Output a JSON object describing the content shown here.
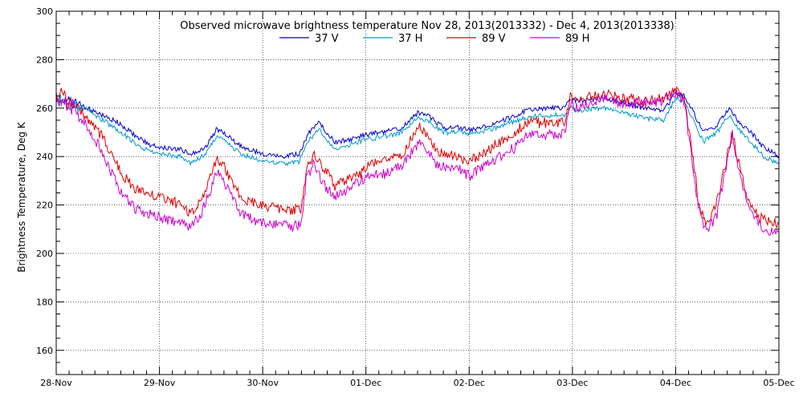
{
  "chart_data": {
    "type": "line",
    "title": "Observed microwave brightness temperature Nov 28, 2013(2013332) - Dec  4, 2013(2013338)",
    "xlabel": "",
    "ylabel": "Brightness Temperature, Deg K",
    "xlim": [
      "2013-11-28",
      "2013-12-05"
    ],
    "ylim": [
      150,
      300
    ],
    "x_ticks": [
      "28-Nov",
      "29-Nov",
      "30-Nov",
      "01-Dec",
      "02-Dec",
      "03-Dec",
      "04-Dec",
      "05-Dec"
    ],
    "y_ticks": [
      160,
      180,
      200,
      220,
      240,
      260,
      280,
      300
    ],
    "grid": true,
    "legend_position": "top-center",
    "x_unit": "days from 2013-11-28 00:00",
    "series": [
      {
        "name": "37 V",
        "color": "#0000cc",
        "points": [
          [
            0,
            265
          ],
          [
            0.15,
            262
          ],
          [
            0.3,
            260
          ],
          [
            0.45,
            257
          ],
          [
            0.6,
            254
          ],
          [
            0.75,
            249
          ],
          [
            0.9,
            245
          ],
          [
            1.0,
            244
          ],
          [
            1.2,
            243
          ],
          [
            1.3,
            241
          ],
          [
            1.45,
            244
          ],
          [
            1.55,
            251
          ],
          [
            1.6,
            251
          ],
          [
            1.7,
            247
          ],
          [
            1.8,
            244
          ],
          [
            2.0,
            241
          ],
          [
            2.2,
            240
          ],
          [
            2.35,
            241
          ],
          [
            2.45,
            250
          ],
          [
            2.55,
            254
          ],
          [
            2.62,
            250
          ],
          [
            2.7,
            246
          ],
          [
            2.85,
            247
          ],
          [
            3.0,
            249
          ],
          [
            3.15,
            250
          ],
          [
            3.35,
            252
          ],
          [
            3.5,
            258
          ],
          [
            3.6,
            257
          ],
          [
            3.75,
            252
          ],
          [
            3.9,
            252
          ],
          [
            4.0,
            251
          ],
          [
            4.2,
            253
          ],
          [
            4.4,
            256
          ],
          [
            4.55,
            259
          ],
          [
            4.7,
            260
          ],
          [
            4.92,
            260
          ],
          [
            4.98,
            264
          ],
          [
            5.05,
            263
          ],
          [
            5.3,
            264
          ],
          [
            5.5,
            262
          ],
          [
            5.7,
            260
          ],
          [
            5.88,
            259
          ],
          [
            6.0,
            266
          ],
          [
            6.08,
            265
          ],
          [
            6.15,
            260
          ],
          [
            6.27,
            250
          ],
          [
            6.4,
            253
          ],
          [
            6.52,
            260
          ],
          [
            6.6,
            255
          ],
          [
            6.75,
            249
          ],
          [
            6.85,
            244
          ],
          [
            7.0,
            240
          ]
        ]
      },
      {
        "name": "37 H",
        "color": "#0099cc",
        "points": [
          [
            0,
            264
          ],
          [
            0.15,
            261
          ],
          [
            0.3,
            259
          ],
          [
            0.45,
            255
          ],
          [
            0.6,
            251
          ],
          [
            0.75,
            246
          ],
          [
            0.9,
            242
          ],
          [
            1.0,
            241
          ],
          [
            1.2,
            240
          ],
          [
            1.3,
            237
          ],
          [
            1.45,
            241
          ],
          [
            1.55,
            248
          ],
          [
            1.6,
            248
          ],
          [
            1.7,
            244
          ],
          [
            1.8,
            241
          ],
          [
            2.0,
            238
          ],
          [
            2.2,
            237
          ],
          [
            2.35,
            238
          ],
          [
            2.45,
            247
          ],
          [
            2.55,
            251
          ],
          [
            2.62,
            247
          ],
          [
            2.7,
            243
          ],
          [
            2.85,
            245
          ],
          [
            3.0,
            247
          ],
          [
            3.15,
            248
          ],
          [
            3.35,
            250
          ],
          [
            3.5,
            256
          ],
          [
            3.6,
            255
          ],
          [
            3.75,
            250
          ],
          [
            3.9,
            250
          ],
          [
            4.0,
            249
          ],
          [
            4.2,
            251
          ],
          [
            4.4,
            254
          ],
          [
            4.55,
            256
          ],
          [
            4.7,
            257
          ],
          [
            4.92,
            257
          ],
          [
            4.98,
            260
          ],
          [
            5.05,
            259
          ],
          [
            5.3,
            260
          ],
          [
            5.5,
            258
          ],
          [
            5.7,
            256
          ],
          [
            5.88,
            255
          ],
          [
            6.0,
            264
          ],
          [
            6.08,
            263
          ],
          [
            6.15,
            257
          ],
          [
            6.27,
            246
          ],
          [
            6.4,
            250
          ],
          [
            6.52,
            257
          ],
          [
            6.6,
            252
          ],
          [
            6.75,
            245
          ],
          [
            6.85,
            240
          ],
          [
            7.0,
            237
          ]
        ]
      },
      {
        "name": "89 V",
        "color": "#dd0000",
        "points": [
          [
            0,
            266
          ],
          [
            0.15,
            262
          ],
          [
            0.3,
            256
          ],
          [
            0.45,
            248
          ],
          [
            0.55,
            240
          ],
          [
            0.65,
            232
          ],
          [
            0.75,
            227
          ],
          [
            0.85,
            225
          ],
          [
            1.0,
            223
          ],
          [
            1.15,
            221
          ],
          [
            1.3,
            217
          ],
          [
            1.4,
            222
          ],
          [
            1.5,
            232
          ],
          [
            1.55,
            238
          ],
          [
            1.6,
            238
          ],
          [
            1.7,
            229
          ],
          [
            1.8,
            223
          ],
          [
            1.9,
            221
          ],
          [
            2.1,
            219
          ],
          [
            2.3,
            218
          ],
          [
            2.37,
            218
          ],
          [
            2.42,
            234
          ],
          [
            2.5,
            242
          ],
          [
            2.55,
            237
          ],
          [
            2.6,
            235
          ],
          [
            2.7,
            228
          ],
          [
            2.8,
            230
          ],
          [
            2.95,
            233
          ],
          [
            3.05,
            237
          ],
          [
            3.2,
            238
          ],
          [
            3.35,
            241
          ],
          [
            3.45,
            248
          ],
          [
            3.52,
            252
          ],
          [
            3.6,
            248
          ],
          [
            3.7,
            242
          ],
          [
            3.85,
            241
          ],
          [
            4.0,
            238
          ],
          [
            4.15,
            242
          ],
          [
            4.3,
            246
          ],
          [
            4.45,
            250
          ],
          [
            4.55,
            254
          ],
          [
            4.7,
            254
          ],
          [
            4.92,
            254
          ],
          [
            4.98,
            265
          ],
          [
            5.05,
            263
          ],
          [
            5.3,
            266
          ],
          [
            5.5,
            264
          ],
          [
            5.7,
            263
          ],
          [
            5.88,
            264
          ],
          [
            6.0,
            267
          ],
          [
            6.08,
            264
          ],
          [
            6.15,
            245
          ],
          [
            6.22,
            222
          ],
          [
            6.3,
            212
          ],
          [
            6.4,
            222
          ],
          [
            6.5,
            240
          ],
          [
            6.55,
            250
          ],
          [
            6.6,
            239
          ],
          [
            6.7,
            222
          ],
          [
            6.8,
            215
          ],
          [
            6.9,
            213
          ],
          [
            7.0,
            212
          ]
        ]
      },
      {
        "name": "89 H",
        "color": "#cc00cc",
        "points": [
          [
            0,
            265
          ],
          [
            0.15,
            261
          ],
          [
            0.3,
            252
          ],
          [
            0.45,
            242
          ],
          [
            0.55,
            232
          ],
          [
            0.65,
            224
          ],
          [
            0.75,
            219
          ],
          [
            0.85,
            217
          ],
          [
            1.0,
            215
          ],
          [
            1.15,
            213
          ],
          [
            1.3,
            211
          ],
          [
            1.4,
            216
          ],
          [
            1.5,
            226
          ],
          [
            1.55,
            233
          ],
          [
            1.6,
            232
          ],
          [
            1.7,
            223
          ],
          [
            1.8,
            216
          ],
          [
            1.9,
            214
          ],
          [
            2.1,
            212
          ],
          [
            2.3,
            211
          ],
          [
            2.37,
            212
          ],
          [
            2.42,
            230
          ],
          [
            2.5,
            238
          ],
          [
            2.55,
            232
          ],
          [
            2.6,
            228
          ],
          [
            2.7,
            224
          ],
          [
            2.8,
            226
          ],
          [
            2.95,
            230
          ],
          [
            3.05,
            232
          ],
          [
            3.2,
            233
          ],
          [
            3.35,
            236
          ],
          [
            3.45,
            242
          ],
          [
            3.52,
            246
          ],
          [
            3.6,
            242
          ],
          [
            3.7,
            236
          ],
          [
            3.85,
            236
          ],
          [
            4.0,
            232
          ],
          [
            4.15,
            236
          ],
          [
            4.3,
            240
          ],
          [
            4.45,
            244
          ],
          [
            4.55,
            249
          ],
          [
            4.7,
            249
          ],
          [
            4.92,
            249
          ],
          [
            4.98,
            262
          ],
          [
            5.05,
            260
          ],
          [
            5.3,
            264
          ],
          [
            5.5,
            262
          ],
          [
            5.7,
            262
          ],
          [
            5.88,
            263
          ],
          [
            6.0,
            266
          ],
          [
            6.08,
            263
          ],
          [
            6.15,
            242
          ],
          [
            6.22,
            218
          ],
          [
            6.3,
            209
          ],
          [
            6.4,
            216
          ],
          [
            6.5,
            238
          ],
          [
            6.55,
            249
          ],
          [
            6.6,
            236
          ],
          [
            6.7,
            219
          ],
          [
            6.8,
            212
          ],
          [
            6.9,
            209
          ],
          [
            7.0,
            208
          ]
        ]
      }
    ]
  }
}
